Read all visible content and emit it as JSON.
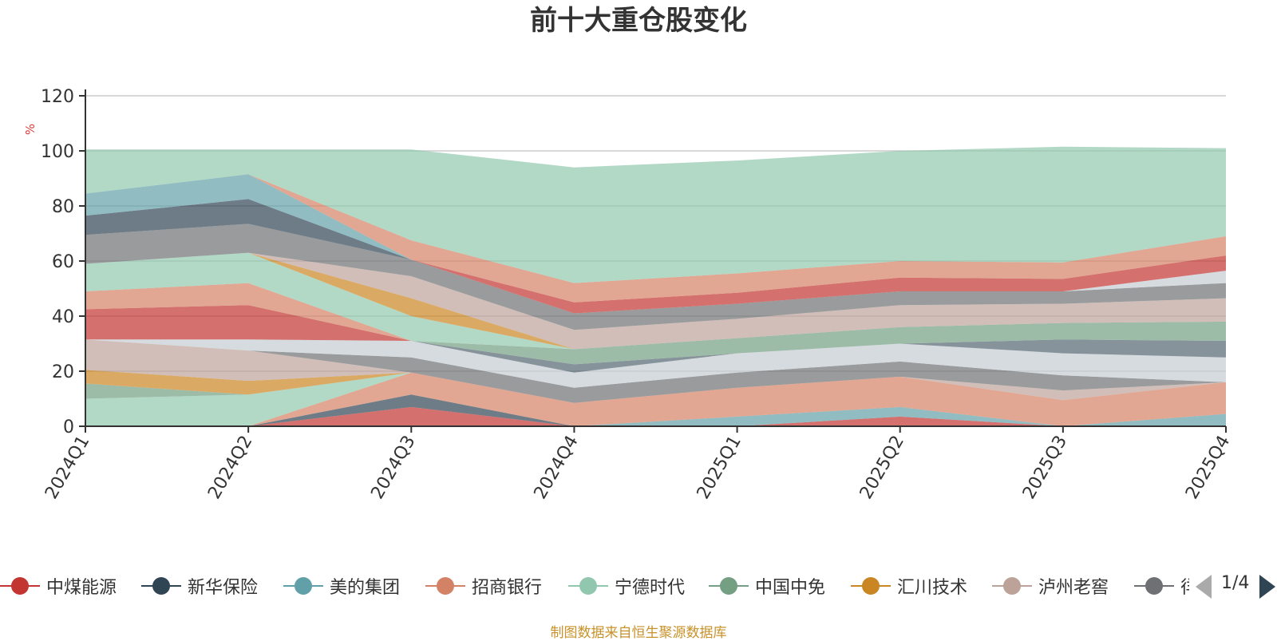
{
  "chart_data": {
    "type": "area",
    "stacked": true,
    "title": "前十大重仓股变化",
    "ylabel": "%",
    "ylim": [
      0,
      120
    ],
    "yticks": [
      0,
      20,
      40,
      60,
      80,
      100,
      120
    ],
    "grid": true,
    "legend_position": "bottom",
    "categories": [
      "2024Q1",
      "2024Q2",
      "2024Q3",
      "2024Q4",
      "2025Q1",
      "2025Q2",
      "2025Q3",
      "2025Q4"
    ],
    "series": [
      {
        "name": "中煤能源",
        "color": "#c23531",
        "values": [
          0,
          0,
          7,
          0,
          0,
          3.5,
          0,
          0
        ]
      },
      {
        "name": "新华保险",
        "color": "#2f4554",
        "values": [
          0,
          0,
          4.5,
          0,
          0,
          0,
          0,
          0
        ]
      },
      {
        "name": "美的集团",
        "color": "#61a0a8",
        "values": [
          0,
          0,
          0,
          0,
          3.5,
          3.5,
          0,
          4.5
        ]
      },
      {
        "name": "招商银行",
        "color": "#d48265",
        "values": [
          0,
          0,
          8,
          8.5,
          10.5,
          11,
          9.5,
          11.5
        ]
      },
      {
        "name": "宁德时代",
        "color": "#91c7ae",
        "values": [
          10,
          11.5,
          0,
          0,
          0,
          0,
          0,
          0
        ]
      },
      {
        "name": "中国中免",
        "color": "#749f83",
        "values": [
          5.5,
          0,
          0,
          0,
          0,
          0,
          0,
          0
        ]
      },
      {
        "name": "汇川技术",
        "color": "#ca8622",
        "values": [
          5,
          5,
          0,
          0,
          0,
          0,
          0,
          0
        ]
      },
      {
        "name": "泸州老窖",
        "color": "#bda29a",
        "values": [
          11,
          11,
          0,
          0,
          0,
          0,
          3.5,
          0
        ]
      },
      {
        "name": "",
        "color": "#6e7074",
        "values": [
          0,
          0,
          5.5,
          5.5,
          5.5,
          5.5,
          5.5,
          0
        ]
      },
      {
        "name": "",
        "color": "#546570",
        "values": [
          0,
          0,
          0,
          0,
          0,
          0,
          0,
          0
        ]
      },
      {
        "name": "",
        "color": "#c4ccd3",
        "values": [
          0,
          4,
          6,
          5.5,
          7,
          6.5,
          8,
          9
        ]
      },
      {
        "name": "",
        "color": "#546570",
        "values": [
          0,
          0,
          0,
          3,
          0,
          0,
          5,
          6
        ]
      },
      {
        "name": "",
        "color": "#c23531",
        "values": [
          11,
          12.5,
          0,
          0,
          0,
          0,
          0,
          0
        ]
      },
      {
        "name": "",
        "color": "#d48265",
        "values": [
          6.5,
          8,
          0,
          0,
          0,
          0,
          0,
          0
        ]
      },
      {
        "name": "",
        "color": "#749f83",
        "values": [
          0,
          0,
          0,
          5.5,
          5.5,
          6,
          6,
          7
        ]
      },
      {
        "name": "",
        "color": "#91c7ae",
        "values": [
          10,
          11,
          9,
          0,
          0,
          0,
          0,
          0
        ]
      },
      {
        "name": "",
        "color": "#ca8622",
        "values": [
          0,
          0,
          6.5,
          0,
          0,
          0,
          0,
          0
        ]
      },
      {
        "name": "",
        "color": "#bda29a",
        "values": [
          0,
          0,
          8,
          7,
          7,
          8,
          7,
          8.5
        ]
      },
      {
        "name": "",
        "color": "#6e7074",
        "values": [
          10.5,
          10.5,
          6,
          6,
          5.5,
          5,
          4.5,
          5.5
        ]
      },
      {
        "name": "",
        "color": "#2f4554",
        "values": [
          7,
          9,
          0,
          0,
          0,
          0,
          0,
          0
        ]
      },
      {
        "name": "",
        "color": "#61a0a8",
        "values": [
          8,
          9,
          0,
          0,
          0,
          0,
          0,
          0
        ]
      },
      {
        "name": "",
        "color": "#c4ccd3",
        "values": [
          0,
          0,
          0,
          0,
          0,
          0,
          0,
          4.5
        ]
      },
      {
        "name": "",
        "color": "#c23531",
        "values": [
          0,
          0,
          0,
          4,
          4,
          5,
          4.5,
          5.5
        ]
      },
      {
        "name": "",
        "color": "#d48265",
        "values": [
          0,
          0,
          7,
          7,
          7,
          6,
          6,
          7
        ]
      },
      {
        "name": "",
        "color": "#91c7ae",
        "values": [
          16,
          9,
          33,
          42,
          41,
          40,
          42,
          32
        ]
      }
    ]
  },
  "legend": {
    "items": [
      {
        "label": "中煤能源",
        "color": "#c23531"
      },
      {
        "label": "新华保险",
        "color": "#2f4554"
      },
      {
        "label": "美的集团",
        "color": "#61a0a8"
      },
      {
        "label": "招商银行",
        "color": "#d48265"
      },
      {
        "label": "宁德时代",
        "color": "#91c7ae"
      },
      {
        "label": "中国中免",
        "color": "#749f83"
      },
      {
        "label": "汇川技术",
        "color": "#ca8622"
      },
      {
        "label": "泸州老窖",
        "color": "#bda29a"
      },
      {
        "label": "徉",
        "color": "#6e7074"
      }
    ],
    "pager": {
      "label": "1/4",
      "prev_icon": "triangle-left-icon",
      "next_icon": "triangle-right-icon"
    }
  },
  "footer": "制图数据来自恒生聚源数据库"
}
